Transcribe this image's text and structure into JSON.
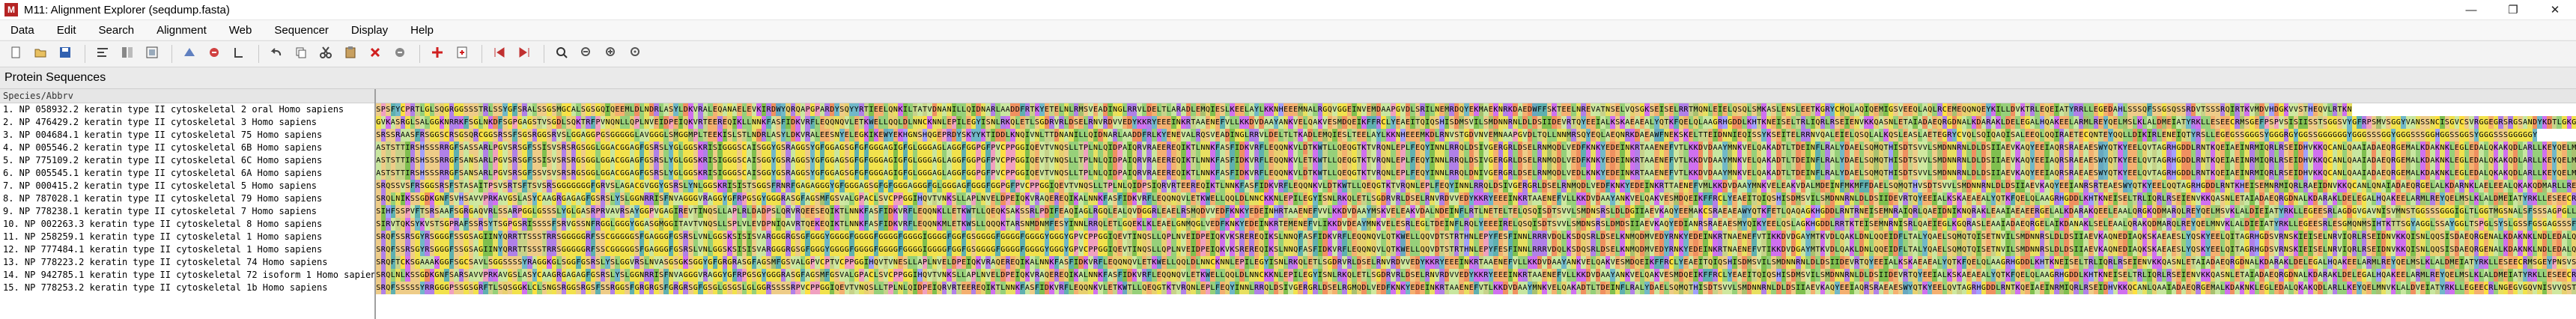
{
  "window": {
    "app_icon_label": "M",
    "title": "M11: Alignment Explorer (seqdump.fasta)",
    "controls": [
      "—",
      "❐",
      "✕"
    ]
  },
  "menu": [
    "Data",
    "Edit",
    "Search",
    "Alignment",
    "Web",
    "Sequencer",
    "Display",
    "Help"
  ],
  "toolbar_icons": [
    "new-file-icon",
    "open-folder-icon",
    "save-icon",
    "sep",
    "align-left-icon",
    "align-cols-icon",
    "align-box-icon",
    "sep",
    "align-clustal-icon",
    "align-muscle-icon",
    "translate-icon",
    "sep",
    "undo-icon",
    "copy-icon",
    "cut-icon",
    "paste-icon",
    "delete-icon",
    "delete-gap-icon",
    "sep",
    "add-sequence-icon",
    "insert-file-icon",
    "sep",
    "prev-icon",
    "next-icon",
    "sep",
    "search-icon",
    "find-prev-icon",
    "find-next-icon",
    "find-marked-icon"
  ],
  "panel_title": "Protein Sequences",
  "column_header": "Species/Abbrv",
  "rows": [
    {
      "name": "1. NP 058932.2 keratin type II cytoskeletal 2 oral Homo sapiens",
      "seq": "SPSFYCPRTLGLSQGRGGSSSTRLSSYGFSRALSSGSMGCALSGSGQIQEEMLDLNDRLASYLDKVRALEQANAELEVKIRDWYQRQAPGPARDYSQYYRTIEELQNKILTATVDNANILLQIDNARLAADDFRTKYETELNLRMSVEADINGLRRVLDELTLARADLEMQIESLKEELAYLKKNHEEEMNALRGQVGGEINVEMDAAPGVDLSRILNEMRDQYEKMAEKNRKDAEDWFFSKTEELNREVATNSELVQSGKSEISELRRTMQNLEIELQSQLSMKASLENSLEETKGRYCMQLAQIQEMIGSVEEQLAQLRCEMEQQNQEYKILLDVKTRLEQEIATYRRLLEGEDAHLSSSQFSSGSQSSRDVTSSSRQIRTKVMDVHDGKVVSTHEQVLRTKN"
    },
    {
      "name": "2. NP 476429.2 keratin type II cytoskeletal 3 Homo sapiens",
      "seq": "GVKASRGLSALGGKNRRKFSGLNKDFSGPGAGSTVSGDLSQKTRFPVNQNLLQPLNVEIDPEIQKVRTEEREQIKLLNNKFASFIDKVRFLEQQNQVLETKWELLQQLDLNNCKNNLEPILEGYISNLRKQLETLSGDRVRLDSELRNVRDVVEDYKKRYEEEINKRTAAENEFVLLKKDVDAAYANKVELQAKVESMDQEIKFFRCLYEAEITQIQSHISDMSVILSMDNNRNLDLDSIIDEVRTQYEEIALKSKAEAEALYQTKFQELQLAAGRHGDDLKHTKNEISELTRLIQRLRSEIENVKKQASNLETAIADAEQRGDNALKDARAKLDELEGALHQAKEELARMLREYQELMSLKLALDMEIATYRKLLESEECRMSGEFPSPVSISIISSTSGGSVYGFRPSMVSGGYVANSSNCISGVCSVRGGEGRSRGSANDYKDTLGKGSSLSAPSKKTSR"
    },
    {
      "name": "3. NP 004684.1 keratin type II cytoskeletal 75 Homo sapiens",
      "seq": "SRSSRAASFRSGGSCRSGSQRCGGSRSSFSGSRGGSRVSLGGAGGPGSGGGGGLAVGGGLSMGGMPLTEEKISLSTLNDRLASYLDKVRALEESNYELEGKIKEWYEKHGNSHQGEPRDYSKYYKTIDDLKNQIVNLTTDNANILLQIDNARLAADDFRLKYENEVALRQSVEADINGLRRVLDELTLTKADLEMQIESLTEELAYLKKNHEEEMKDLRNVSTGDVNVEMNAAPGVDLTQLLNNMRSQYEQLAEQNRKDAEAWFNEKSKELTTEIDNNIEQISSYKSEITELRRNVQALEIELQSQLALKQSLEASLAETEGRYCVQLSQIQAQISALEEQLQQIRAETECQNTEYQQLLDIKIRLENEIQTYRSLLEGEGSSGGGSYGGGRGYGGSSGGGGGGYGGGSSSGGYGGGSSSGGHGGSSGGSYGGGSSSGGGGGY"
    },
    {
      "name": "4. NP 005546.2 keratin type II cytoskeletal 6B Homo sapiens",
      "seq": "ASTSTTIRSHSSSRRGFSASSARLPGVSRSGFSSISVSRSRGSGGLGGACGGAGFGSRSLYGLGGSKRISIGGGSCAISGGYGSRAGGSYGFGGAGSGFGFGGGAGIGFGLGGGAGLAGGFGGPGFPVCPPGGIQEVTVNQSLLTPLNLQIDPAIQRVRAEEREQIKTLNNKFASFIDKVRFLEQQNKVLDTKWTLLQEQGTKTVRQNLEPLFEQYINNLRRQLDSIVGERGRLDSELRNMQDLVEDFKNKYEDEINKRTAAENEFVTLKKDVDAAYMNKVELQAKADTLTDEINFLRALYDAELSQMQTHISDTSVVLSMDNNRNLDLDSIIAEVKAQYEEIAQRSRAEAESWYQTKYEELQVTAGRHGDDLRNTKQEIAEINRMIQRLRSEIDHVKKQCANLQAAIADAEQRGEMALKDAKNKLEGLEDALQKAKQDLARLLKEYQELMNVKLALDVEIATYRKLLEGEECRLNGEGVGQVNISVVQSTVSSGYGGASGVGSGLGLGGGSSYSYGSGLGVGGGFSSSSGRATGGGLSSVGGGSSTIKYTTTSSSSRKSYKH"
    },
    {
      "name": "5. NP 775109.2 keratin type II cytoskeletal 6C Homo sapiens",
      "seq": "ASTSTTIRSHSSSRRGFSANSARLPGVSRSGFSSISVSRSRGSGGLGGACGGAGFGSRSLYGLGGSKRISIGGGSCAISGGYGSRAGGSYGFGGAGSGFGFGGGAGIGFGLGGGAGLAGGFGGPGFPVCPPGGIQEVTVNQSLLTPLNLQIDPAIQRVRAEEREQIKTLNNKFASFIDKVRFLEQQNKVLETKWTLLQEQGTKTVRQNLEPLFEQYINNLRRQLDSIVGERGRLDSELRNMQDLVEDFKNKYEDEINKRTAAENEFVTLKKDVDAAYMNKVELQAKADTLTDEINFLRALYDAELSQMQTHISDTSVVLSMDNNRNLDLDSIIAEVKAQYEEIAQRSRAEAESWYQTKYEELQVTAGRHGDDLRNTKQEIAEINRMIQRLRSEIDHVKKQCANLQAAIADAEQRGEMALKDAKNKLEGLEDALQKAKQDLARLLKEYQELMNVKLALDVEIATYRKLLEGEECRLNGEGVGQVNISVVQSTVSSGYGGASGVGSGLGLGGGSSYSYGSGLGVGGGFSSSSGRAIGGGLSSVGGGSSTIKYTTTSSSSRKSYKH"
    },
    {
      "name": "6. NP 005545.1 keratin type II cytoskeletal 6A Homo sapiens",
      "seq": "ASTSTTIRSHSSSRRGFSANSARLPGVSRSGFSSVSVSRSRGSGGLGGACGGAGFGSRSLYGLGGSKRISIGGGSCAISGGYGSRAGGSYGFGGAGSGFGFGGGAGIGFGLGGGAGLAGGFGGPGFPVCPPGGIQEVTVNQSLLTPLNLQIDPAIQRVRAEEREQIKTLNNKFASFIDKVRFLEQQNKVLDTKWTLLQEQGTKTVRQNLEPLFEQYINNLRRQLDNIVGERGRLDSELRNMQDLVEDLKNKYEDEINKRTAAENEFVTLKKDVDAAYMNKVELQAKADTLTDEINFLRALYDAELSQMQTHISDTSVVLSMDNNRNLDLDSIIAEVKAQYEEIAQRSRAEAESWYQTKYEELQVTAGRHGDDLRNTKQEIAEINRMIQRLRSEIDHVKKQCANLQAAIADAEQRGEMALKDAKNKLEGLEDALQKAKQDLARLLKEYQELMNVKLALDVEIATYRKLLEGEECRLNGEGVGQVNISVVQSTVSSGYGGASGVGSGLGLGGGSSYSYGSGLGVGGGFSSSSGRAIGGGLSSVGGGSSTIKYTTTSSSSRKSYKH"
    },
    {
      "name": "7. NP 000415.2 keratin type II cytoskeletal 5 Homo sapiens",
      "seq": "SRQSSVSFRSGGSRSFSTASAITPSVSRTSFTSVSRSGGGGGGGFGRVSLAGACGVGGYGSRSLYNLGGSKRISISTSGGSFRNRFGAGAGGGYGFGGGAGSGFGFGGGAGGGFGLGGGAGFGGGFGGPGFPVCPPGGIQEVTVNQSLLTPLNLQIDPSIQRVRTEEREQIKTLNNKFASFIDKVRFLEQQNKVLDTKWTLLQEQGTKTVRQNLEPLFEQYINNLRRQLDSIVGERGRLDSELRNMQDLVEDFKNKYEDEINKRTTAENEFVMLKKDVDAAYMNKVELEAKVDALMDEINFMKMFFDAELSQMQTHVSDTSVVLSMDNNRNLDLDSIIAEVKAQYEEIANRSRTEAESWYQTKYEELQQTAGRHGDDLRNTKHEISEMNRMIQRLRAEIDNVKKQCANLQNAIADAEQRGELALKDARNKLAELEEALQKAKQDMARLLREYQELMNTKLALDVEIATYRKLLEGEECRLSGEGVGPVNISVVTSSVSSGYGSGSGYGGGLGGGLGGGLGGGLAGGSSGSYYSSSSGGVGLGGGLSVGGSGFSASSGRGLGVGFGSGGGSSSSVKFVSTTSSSRKSFKS"
    },
    {
      "name": "8. NP 787028.1 keratin type II cytoskeletal 79 Homo sapiens",
      "seq": "SRQLNIKSSGDKGNFSVHSAVVPRKAVGSLASYCAAGRGAGAGFGSRSLYSLGGNRRISFNVAGGGVRAGGYGFRPGSGYGGGRASGFAGSMFGSVALGPACLSVCPPGGIHQVTVNKSLLAPLNVELDPEIQKVRAQEREQIKALNNKFASFIDKVRFLEQQNQVLETKWELLQQLDLNNCKKNLEPILEGYISNLRKQLETLSGDRVRLDSELRNVRDVVEDYKKRYEEEINKRTAAENEFVLLKKDVDAAYANKVELQAKVESMDQEIKFFRCLYEAEITQIQSHISDMSVILSMDNNRNLDLDSIIDEVRTQYEEIALKSKAEAEALYQTKFQELQLAAGRHGDDLKHTKNEISELTRLIQRLRSEIENVKKQASNLETAIADAEQRGDNALKDARAKLDELEGALHQAKEELARMLREYQELMSLKLALDMEIATYRKLLESEECRMSGEYPNSVSISVISSTNAGAGGAGFSMGFGASSSYSYKTAAADVKTKGSCGSELKDPLAKTSGSSCATKKASR"
    },
    {
      "name": "9. NP 778238.1 keratin type II cytoskeletal 7 Homo sapiens",
      "seq": "SIHFSSPVFTSRSAAFSGRGAQVRLSSARPGGLGSSSLYGLGASRPRVAVRSAYGGPVGAGIREVTINQSLLAPLRLDADPSLQRVRQEESEQIKTLNNKFASFIDKVRFLEQQNKLLETKWTLLQEQKSAKSSRLPDIFEAQIAGLRGQLEALQVDGGRLEAELRSMQDVVEDFKNKYEDEINHRTAAENEFVVLKKDVDAAYMSKVELEAKVDALNDEINFLRTLNETELTELQSQISDTSVVLSMDNSRSLDLDGIIAEVKAQYEEMAKCSRAEAEAWYQTKFETLQAQAGKHGDDLRNTRNEISEMNRAIQRLQAEIDNIKNQRAKLEAAIAEAEERGELALKDARAKQEELEAALQRGKQDMARQLREYQELMSVKLALDIEIATYRKLLEGEESRLAGDGVGAVNISVMNSTGGSSSGGGIGLTLGGTMGSNALSFSSSAGPGLLKAYSIRTASASRRSARD"
    },
    {
      "name": "10. NP 002263.3 keratin type II cytoskeletal 8 Homo sapiens",
      "seq": "SIRVTQKSYKVSTSGPRAFSSRSYTSGPGSRISSSSFSRVGSSNFRGGLGGGYGGASGMGGITAVTVNQSLLSPLVLEVDPNIQAVRTQEKEQIKTLNNKFASFIDKVRFLEQQNKMLETKWSLLQQQKTARSNMDNMFESYINNLRRQLETLGQEKLKLEAELGNMQGLVEDFKNKYEDEINKRTEMENEFVLIKKDVDEAYMNKVELESRLEGLTDEINFLRQLYEEEIRELQSQISDTSVVLSMDNSRSLDMDSIIAEVKAQYEDIANRSRAEAESMYQIKYEELQSLAGKHGDDLRRTKTEISEMNRNISRLQAEIEGLKGQRASLEAAIADAEQRGELAIKDANAKLSELEAALQRAKQDMARQLREYQELMNVKLALDIEIATYRKLLEGEESRLESGMQNMSIHTKTTSGYAGGLSSAYGGLTSPGLSYSLGSSFGSGAGSSSFSRTSSSRAVVVKKIETRDGKLVSESSDVLPK"
    },
    {
      "name": "11. NP 258259.1 keratin type II cytoskeletal 1 Homo sapiens",
      "seq": "SRQFSSRSGYRSGGGFSSGSAGIINYQRRTTSSSTRRSGGGGGRFSSCGGGGGSFGAGGGFGSRSLVNLGGSKSISISVARGGGRGSGFGGGYGGGGFGGGGFGGGGFGGGGIGGGGFGGFGSGGGGFGGGGFGGGGYGGGYGPVCPPGGIQEVTINQSLLQPLNVEIDPEIQKVKSREREQIKSLNNQFASFIDKVRFLEQQNQVLQTKWELLQQVDTSTRTHNLEPYFESFINNLRRRVDQLKSDQSRLDSELKNMQDMVEDYRNKYEDEINKRTNAENEFVTIKKDVDGAYMTKVDLQAKLDNLQQEIDFLTALYQAELSQMQTQISETNVILSMDNNRSLDLDSIIAEVKAQNEDIAQKSKAEAESLYQSKYEELQITAGRHGDSVRNSKIEISELNRVIQRLRSEIDNVKKQISNLQQSISDAEQRGENALKDAKNKLNDLEDALQQAKEDLARLLRDYQELMNTKLALDLEIATYRTLLEGEESRMSGECAPNVSVSVSTSHTTISGGGSRGGGGGGYGSGGSSYGSGGGSYGSGGGGGGGRGSYGSGGSSYGSGGGSYGSGGGGGGHGSYGSGSSSGGYRGGSGGGGGSSGGRGSGGGSSGGSIGGRGSSSGGVKSSGGSSSVKFVSTTYSGVTR"
    },
    {
      "name": "12. NP 777484.1 keratin type II cytoskeletal 1 Homo sapiens",
      "seq": "SRQFSSRSGYRSGGGFSSGSAGIINYQRRTTSSSTRRSGGGGGRFSSCGGGGGSFGAGGGFGSRSLVNLGGSKSISISVARGGGRGSGFGGGYGGGGFGGGGFGGGGFGGGGIGGGGFGGFGSGGGGFGGGGFGGGGYGGGYGPVCPPGGIQEVTINQSLLQPLNVEIDPEIQKVKSREREQIKSLNNQFASFIDKVRFLEQQNQVLQTKWELLQQVDTSTRTHNLEPYFESFINNLRRRVDQLKSDQSRLDSELKNMQDMVEDYRNKYEDEINKRTNAENEFVTIKKDVDGAYMTKVDLQAKLDNLQQEIDFLTALYQAELSQMQTQISETNVILSMDNNRSLDLDSIIAEVKAQNEDIAQKSKAEAESLYQSKYEELQITAGRHGDSVRNSKIEISELNRVIQRLRSEIDNVKKQISNLQQSISDAEQRGENALKDAKNKLNDLEDALQQAKEDLARLLRDYQELMNTKLALDLEIATYRTLLEGEESRMSGECAPNVSVSVSTSHTTISGGGSRGGGGGGYGSGGSSYGSGGGSYGSGGGGGGGRGSYGSGGSSYGSGGGSYGSGGGGGGHGSYGSGSSSGGYRGGSGGGGGSSGGRGSGGGSSGGSIGGRGSSSGGVKSSGGSSSVKFVSTTYSGVTR"
    },
    {
      "name": "13. NP 778223.2 keratin type II cytoskeletal 74 Homo sapiens",
      "seq": "SRQFTCKSGAAAKGGFSGCSAVLSGGSSSSYRAGGKGLSGGFGSRSLYSLGGVRSLNVASGSGKSGGYGFGRGRASGFAGSMFGSVALGPVCPTVCPPGGIHQVTVNESLLAPLNVELDPEIQKVRAQEREQIKALNNKFASFIDKVRFLEQQNQVLETKWELLQQLDLNNCKNNLEPILEGYISNLRKQLETLSGDRVRLDSELRNVRDVVEDYKKRYEEEINKRTAAENEFVLLKKDVDAAYANKVELQAKVESMDQEIKFFRCLYEAEITQIQSHISDMSVILSMDNNRNLDLDSIIDEVRTQYEEIALKSKAEAEALYQTKFQELQLAAGRHGDDLKHTKNEISELTRLIQRLRSEIENVKKQASNLETAIADAEQRGDNALKDARAKLDELEGALHQAKEELARMLREYQELMSLKLALDMEIATYRKLLESEECRMSGEYPNSVSISVISSTNAGAGGAGFSMGFGASSSYSYKTAAADVKTKGSCGSELKDPLAKTSGSSCATKKASR"
    },
    {
      "name": "14. NP 942785.1 keratin type II cytoskeletal 72 isoform 1 Homo sapiens",
      "seq": "SRQLNLKSSGDKGNFSARSAVVPRKAVGSLASYCAAGRGAGAGFGSRSLYSLGGNRRISFNVAGGGVRAGGYGFRPGSGYGGGRASGFAGSMFGSVALGPACLSVCPPGGIHQVTVNKSLLAPLNVELDPEIQKVRAQEREQIKALNNKFASFIDKVRFLEQQNQVLETKWELLQQLDLNNCKKNLEPILEGYISNLRKQLETLSGDRVRLDSELRNVRDVVEDYKKRYEEEINKRTAAENEFVLLKKDVDAAYANKVELQAKVESMDQEIKFFRCLYEAEITQIQSHISDMSVILSMDNNRNLDLDSIIDEVRTQYEEIALKSKAEAEALYQTKFQELQLAAGRHGDDLKHTKNEISELTRLIQRLRSEIENVKKQASNLETAIADAEQRGDNALKDARAKLDELEGALHQAKEELARMLREYQELMSLKLALDMEIATYRKLLESEECRMSGEYPNSVSISVISSTNAGAGGAGFSMGFGASSSYSYKTAAADVKTKGSCGSELKDPLAKTSGSSCATKKASR"
    },
    {
      "name": "15. NP 778253.2 keratin type II cytoskeletal 1b Homo sapiens",
      "seq": "SRQFSSSSSYRRGGGPSSGSGRFTLSQSGGKLCLSNGSRGGSRGSFSSRGGSFGRGRGSFGRGRSGFGSGLGSGSLGLGGRSSSSRPVCPPGGIQEVTVNQSLLTPLNLQIDPEIQRVRTEEREQIKTLNNKFASFIDKVRFLEQQNKVLETKWTLLQEQGTKTVRQNLEPLFEQYINNLRRQLDSIVGERGRLDSELRGMQDLVEDFKNKYEDEINKRTAAENEFVTLKKDVDAAYMNKVELQAKADTLTDEINFLRALYDAELSQMQTHISDTSVVLSMDNNRNLDLDSIIAEVKAQYEEIAQRSRAEAESWYQTKYEELQVTAGRHGDDLRNTKQEIAEINRMIQRLRSEIDHVKKQCANLQAAIADAEQRGEMALKDAKNKLEGLEDALQKAKQDLARLLKEYQELMNVKLALDVEIATYRKLLEGEECRLNGEGVGQVNISVVQSTVSSGYGGASGVGSGLGLGGGSSYSYGSGLGVGGGFSSSSGRAIGGGLSSVGGGSSTIKYTTTSSSSRKSYKH"
    }
  ],
  "residue_colors": {
    "A": "#c8e6a0",
    "G": "#f2e24c",
    "S": "#eecc88",
    "T": "#c7d28a",
    "C": "#ffe040",
    "V": "#cfe8a0",
    "I": "#7fbf4f",
    "L": "#96d07a",
    "M": "#a8c070",
    "F": "#5fb0b0",
    "Y": "#70b8c8",
    "W": "#68a8c0",
    "P": "#f0a0c0",
    "H": "#a0a0ff",
    "K": "#d070f0",
    "R": "#b080e8",
    "D": "#f09060",
    "E": "#f4b070",
    "N": "#e8e060",
    "Q": "#e8d070",
    "-": "#ffffff"
  }
}
